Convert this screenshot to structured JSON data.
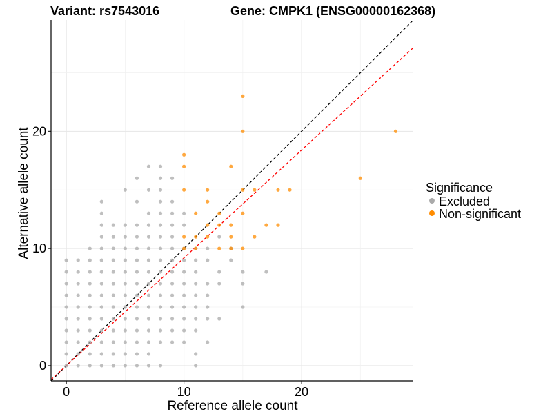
{
  "chart_data": {
    "type": "scatter",
    "title_left": "Variant: rs7543016",
    "title_right": "Gene: CMPK1 (ENSG00000162368)",
    "xlabel": "Reference allele count",
    "ylabel": "Alternative allele count",
    "xlim": [
      -1.3,
      29.5
    ],
    "ylim": [
      -1.3,
      29.5
    ],
    "x_ticks": [
      0,
      10,
      20
    ],
    "y_ticks": [
      0,
      10,
      20
    ],
    "grid": true,
    "legend": {
      "title": "Significance",
      "position": "right",
      "items": [
        {
          "label": "Excluded",
          "color": "#aaaaaa"
        },
        {
          "label": "Non-significant",
          "color": "#ff8c00"
        }
      ]
    },
    "reference_lines": [
      {
        "name": "identity",
        "slope": 1,
        "intercept": 0,
        "color": "#000000",
        "dash": true
      },
      {
        "name": "fit",
        "slope": 0.92,
        "intercept": 0,
        "color": "#ff0000",
        "dash": true
      }
    ],
    "series": [
      {
        "name": "Excluded",
        "color": "#aaaaaa",
        "points": [
          [
            0,
            0
          ],
          [
            0,
            1
          ],
          [
            0,
            2
          ],
          [
            0,
            3
          ],
          [
            0,
            4
          ],
          [
            0,
            5
          ],
          [
            0,
            6
          ],
          [
            0,
            7
          ],
          [
            0,
            8
          ],
          [
            0,
            9
          ],
          [
            1,
            0
          ],
          [
            1,
            1
          ],
          [
            1,
            2
          ],
          [
            1,
            3
          ],
          [
            1,
            4
          ],
          [
            1,
            5
          ],
          [
            1,
            6
          ],
          [
            1,
            7
          ],
          [
            1,
            8
          ],
          [
            1,
            9
          ],
          [
            2,
            0
          ],
          [
            2,
            1
          ],
          [
            2,
            2
          ],
          [
            2,
            3
          ],
          [
            2,
            4
          ],
          [
            2,
            5
          ],
          [
            2,
            6
          ],
          [
            2,
            7
          ],
          [
            2,
            8
          ],
          [
            2,
            9
          ],
          [
            2,
            10
          ],
          [
            3,
            0
          ],
          [
            3,
            1
          ],
          [
            3,
            2
          ],
          [
            3,
            3
          ],
          [
            3,
            4
          ],
          [
            3,
            5
          ],
          [
            3,
            6
          ],
          [
            3,
            7
          ],
          [
            3,
            8
          ],
          [
            3,
            9
          ],
          [
            3,
            10
          ],
          [
            3,
            11
          ],
          [
            3,
            12
          ],
          [
            3,
            13
          ],
          [
            3,
            14
          ],
          [
            4,
            0
          ],
          [
            4,
            1
          ],
          [
            4,
            2
          ],
          [
            4,
            3
          ],
          [
            4,
            4
          ],
          [
            4,
            5
          ],
          [
            4,
            6
          ],
          [
            4,
            7
          ],
          [
            4,
            8
          ],
          [
            4,
            9
          ],
          [
            4,
            10
          ],
          [
            4,
            11
          ],
          [
            4,
            12
          ],
          [
            5,
            0
          ],
          [
            5,
            1
          ],
          [
            5,
            2
          ],
          [
            5,
            3
          ],
          [
            5,
            4
          ],
          [
            5,
            5
          ],
          [
            5,
            6
          ],
          [
            5,
            7
          ],
          [
            5,
            8
          ],
          [
            5,
            9
          ],
          [
            5,
            10
          ],
          [
            5,
            11
          ],
          [
            5,
            12
          ],
          [
            5,
            15
          ],
          [
            6,
            0
          ],
          [
            6,
            1
          ],
          [
            6,
            2
          ],
          [
            6,
            3
          ],
          [
            6,
            4
          ],
          [
            6,
            5
          ],
          [
            6,
            6
          ],
          [
            6,
            7
          ],
          [
            6,
            8
          ],
          [
            6,
            9
          ],
          [
            6,
            10
          ],
          [
            6,
            11
          ],
          [
            6,
            12
          ],
          [
            6,
            14
          ],
          [
            6,
            16
          ],
          [
            7,
            0
          ],
          [
            7,
            1
          ],
          [
            7,
            2
          ],
          [
            7,
            3
          ],
          [
            7,
            4
          ],
          [
            7,
            5
          ],
          [
            7,
            6
          ],
          [
            7,
            7
          ],
          [
            7,
            8
          ],
          [
            7,
            9
          ],
          [
            7,
            10
          ],
          [
            7,
            11
          ],
          [
            7,
            12
          ],
          [
            7,
            13
          ],
          [
            7,
            15
          ],
          [
            7,
            17
          ],
          [
            8,
            0
          ],
          [
            8,
            2
          ],
          [
            8,
            3
          ],
          [
            8,
            4
          ],
          [
            8,
            5
          ],
          [
            8,
            6
          ],
          [
            8,
            7
          ],
          [
            8,
            8
          ],
          [
            8,
            9
          ],
          [
            8,
            10
          ],
          [
            8,
            11
          ],
          [
            8,
            12
          ],
          [
            8,
            13
          ],
          [
            8,
            14
          ],
          [
            8,
            15
          ],
          [
            8,
            16
          ],
          [
            8,
            17
          ],
          [
            9,
            2
          ],
          [
            9,
            3
          ],
          [
            9,
            4
          ],
          [
            9,
            5
          ],
          [
            9,
            6
          ],
          [
            9,
            7
          ],
          [
            9,
            8
          ],
          [
            9,
            9
          ],
          [
            9,
            10
          ],
          [
            9,
            11
          ],
          [
            9,
            12
          ],
          [
            9,
            13
          ],
          [
            9,
            14
          ],
          [
            9,
            16
          ],
          [
            10,
            2
          ],
          [
            10,
            3
          ],
          [
            10,
            4
          ],
          [
            10,
            5
          ],
          [
            10,
            6
          ],
          [
            10,
            7
          ],
          [
            10,
            8
          ],
          [
            10,
            9
          ],
          [
            10,
            10
          ],
          [
            10,
            12
          ],
          [
            10,
            13
          ],
          [
            11,
            0
          ],
          [
            11,
            1
          ],
          [
            11,
            3
          ],
          [
            11,
            4
          ],
          [
            11,
            5
          ],
          [
            11,
            6
          ],
          [
            11,
            7
          ],
          [
            11,
            8
          ],
          [
            11,
            9
          ],
          [
            11,
            10
          ],
          [
            12,
            2
          ],
          [
            12,
            4
          ],
          [
            12,
            5
          ],
          [
            12,
            6
          ],
          [
            12,
            7
          ],
          [
            12,
            9
          ],
          [
            12,
            10
          ],
          [
            13,
            4
          ],
          [
            13,
            7
          ],
          [
            13,
            8
          ],
          [
            13,
            11
          ],
          [
            14,
            9
          ],
          [
            14,
            10
          ],
          [
            15,
            5
          ],
          [
            15,
            7
          ],
          [
            15,
            8
          ],
          [
            17,
            8
          ]
        ]
      },
      {
        "name": "Non-significant",
        "color": "#ff8c00",
        "points": [
          [
            10,
            10
          ],
          [
            10,
            11
          ],
          [
            10,
            15
          ],
          [
            10,
            17
          ],
          [
            10,
            18
          ],
          [
            11,
            10
          ],
          [
            11,
            11
          ],
          [
            11,
            13
          ],
          [
            12,
            11
          ],
          [
            12,
            12
          ],
          [
            12,
            14
          ],
          [
            12,
            15
          ],
          [
            13,
            10
          ],
          [
            13,
            12
          ],
          [
            13,
            13
          ],
          [
            14,
            10
          ],
          [
            14,
            11
          ],
          [
            14,
            12
          ],
          [
            14,
            17
          ],
          [
            15,
            10
          ],
          [
            15,
            13
          ],
          [
            15,
            15
          ],
          [
            15,
            20
          ],
          [
            15,
            23
          ],
          [
            16,
            11
          ],
          [
            16,
            15
          ],
          [
            17,
            12
          ],
          [
            18,
            12
          ],
          [
            18,
            15
          ],
          [
            19,
            15
          ],
          [
            25,
            16
          ],
          [
            28,
            20
          ]
        ]
      }
    ]
  }
}
